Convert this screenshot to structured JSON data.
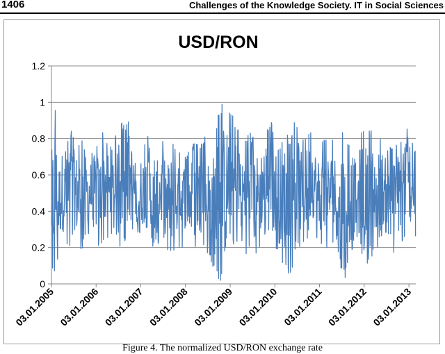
{
  "page": {
    "number": "1406",
    "running_head": "Challenges of the Knowledge Society. IT in Social Sciences",
    "caption": "Figure 4. The normalized USD/RON exchange rate"
  },
  "colors": {
    "series": "#4a7ebb",
    "grid": "#8c8c8c",
    "axis": "#868686",
    "text": "#000000"
  },
  "chart_data": {
    "type": "line",
    "title": "USD/RON",
    "xlabel": "",
    "ylabel": "",
    "ylim": [
      0,
      1.2
    ],
    "yticks": [
      0,
      0.2,
      0.4,
      0.6,
      0.8,
      1,
      1.2
    ],
    "ytick_labels": [
      "0",
      "0.2",
      "0.4",
      "0.6",
      "0.8",
      "1",
      "1.2"
    ],
    "xlim": [
      "2005-01-03",
      "2013-02-28"
    ],
    "xticks": [
      "2005-01-03",
      "2006-01-03",
      "2007-01-03",
      "2008-01-03",
      "2009-01-03",
      "2010-01-03",
      "2011-01-03",
      "2012-01-03",
      "2013-01-03"
    ],
    "xtick_labels": [
      "03.01.2005",
      "03.01.2006",
      "03.01.2007",
      "03.01.2008",
      "03.01.2009",
      "03.01.2010",
      "03.01.2011",
      "03.01.2012",
      "03.01.2013"
    ],
    "grid": "horizontal",
    "legend": "none",
    "series": [
      {
        "name": "",
        "x": [
          "2005-01-03",
          "2005-02-01",
          "2005-03-01",
          "2005-04-01",
          "2005-05-02",
          "2005-06-01",
          "2005-07-01",
          "2005-08-01",
          "2005-09-01",
          "2005-10-03",
          "2005-11-01",
          "2005-12-01",
          "2006-01-03",
          "2006-02-01",
          "2006-03-01",
          "2006-04-03",
          "2006-05-02",
          "2006-06-01",
          "2006-07-03",
          "2006-08-01",
          "2006-09-01",
          "2006-10-02",
          "2006-11-01",
          "2006-12-01",
          "2007-01-03",
          "2007-02-01",
          "2007-03-01",
          "2007-04-02",
          "2007-05-02",
          "2007-06-01",
          "2007-07-02",
          "2007-08-01",
          "2007-09-03",
          "2007-10-01",
          "2007-11-01",
          "2007-12-03",
          "2008-01-03",
          "2008-02-01",
          "2008-03-03",
          "2008-04-01",
          "2008-05-02",
          "2008-06-02",
          "2008-07-01",
          "2008-08-01",
          "2008-09-01",
          "2008-10-01",
          "2008-11-03",
          "2008-12-01",
          "2009-01-05",
          "2009-02-02",
          "2009-03-02",
          "2009-04-01",
          "2009-05-04",
          "2009-06-01",
          "2009-07-01",
          "2009-08-03",
          "2009-09-01",
          "2009-10-01",
          "2009-11-02",
          "2009-12-01",
          "2010-01-04",
          "2010-02-01",
          "2010-03-01",
          "2010-04-01",
          "2010-05-03",
          "2010-06-01",
          "2010-07-01",
          "2010-08-02",
          "2010-09-01",
          "2010-10-01",
          "2010-11-01",
          "2010-12-01",
          "2011-01-03",
          "2011-02-01",
          "2011-03-01",
          "2011-04-01",
          "2011-05-02",
          "2011-06-01",
          "2011-07-01",
          "2011-08-01",
          "2011-09-01",
          "2011-10-03",
          "2011-11-01",
          "2011-12-01",
          "2012-01-03",
          "2012-02-01",
          "2012-03-01",
          "2012-04-02",
          "2012-05-02",
          "2012-06-01",
          "2012-07-02",
          "2012-08-01",
          "2012-09-03",
          "2012-10-01",
          "2012-11-01",
          "2012-12-03",
          "2013-01-03",
          "2013-02-01",
          "2013-02-28"
        ],
        "low": [
          0.05,
          0.03,
          0.15,
          0.22,
          0.2,
          0.18,
          0.25,
          0.18,
          0.15,
          0.26,
          0.25,
          0.3,
          0.22,
          0.2,
          0.24,
          0.25,
          0.22,
          0.15,
          0.18,
          0.23,
          0.21,
          0.25,
          0.28,
          0.3,
          0.25,
          0.26,
          0.22,
          0.17,
          0.2,
          0.22,
          0.24,
          0.18,
          0.15,
          0.16,
          0.2,
          0.19,
          0.25,
          0.2,
          0.15,
          0.18,
          0.22,
          0.2,
          0.15,
          0.12,
          0.05,
          0.02,
          0.01,
          0.03,
          0.25,
          0.18,
          0.22,
          0.2,
          0.16,
          0.18,
          0.1,
          0.16,
          0.2,
          0.24,
          0.27,
          0.3,
          0.2,
          0.15,
          0.1,
          0.08,
          0.05,
          0.1,
          0.25,
          0.18,
          0.22,
          0.25,
          0.3,
          0.28,
          0.1,
          0.15,
          0.05,
          0.25,
          0.2,
          0.15,
          0.07,
          0.03,
          0.12,
          0.2,
          0.23,
          0.1,
          0.18,
          0.1,
          0.12,
          0.2,
          0.15,
          0.25,
          0.2,
          0.28,
          0.15,
          0.28,
          0.22,
          0.24,
          0.3,
          0.24,
          0.22
        ],
        "high": [
          0.82,
          1.0,
          0.73,
          0.8,
          0.75,
          0.88,
          0.82,
          0.78,
          0.8,
          0.78,
          0.72,
          0.74,
          0.8,
          0.76,
          0.86,
          0.82,
          0.76,
          0.84,
          0.79,
          0.9,
          0.86,
          0.92,
          0.8,
          0.68,
          0.75,
          0.78,
          0.82,
          0.74,
          0.7,
          0.78,
          0.8,
          0.72,
          0.78,
          0.8,
          0.7,
          0.76,
          0.72,
          0.74,
          0.78,
          0.8,
          0.75,
          0.82,
          0.78,
          0.75,
          0.85,
          0.95,
          1.0,
          0.97,
          0.98,
          0.9,
          0.88,
          0.86,
          0.8,
          0.85,
          0.82,
          0.8,
          0.78,
          0.88,
          0.86,
          0.9,
          0.83,
          0.78,
          0.92,
          0.84,
          0.8,
          0.86,
          0.97,
          0.8,
          0.83,
          0.82,
          0.88,
          0.8,
          0.78,
          0.8,
          0.82,
          0.78,
          0.8,
          0.74,
          0.83,
          0.84,
          0.8,
          0.78,
          0.74,
          0.86,
          0.88,
          0.82,
          0.87,
          0.78,
          0.82,
          0.8,
          0.72,
          0.78,
          0.74,
          0.78,
          0.82,
          0.96,
          0.8,
          0.78,
          0.74
        ]
      }
    ]
  }
}
